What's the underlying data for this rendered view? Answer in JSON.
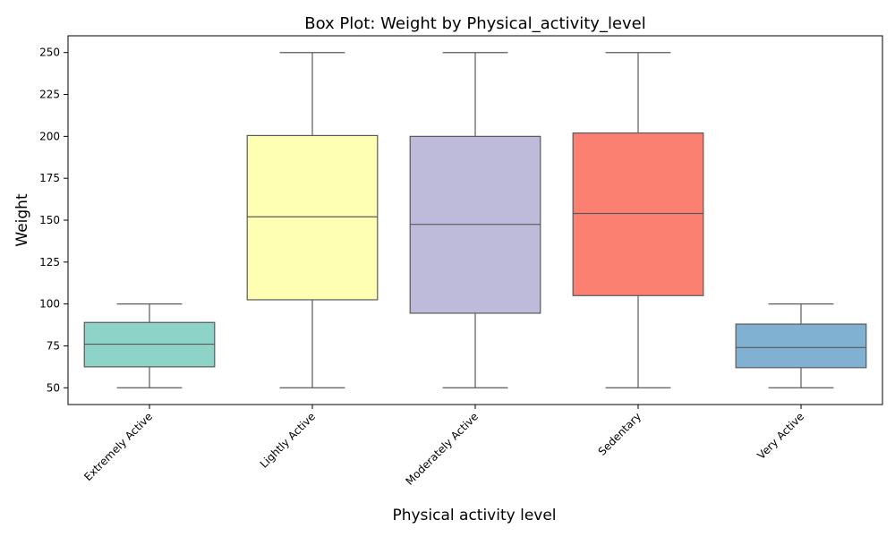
{
  "chart_data": {
    "type": "box",
    "title": "Box Plot: Weight by Physical_activity_level",
    "xlabel": "Physical activity level",
    "ylabel": "Weight",
    "ylim": [
      40,
      260
    ],
    "yticks": [
      50,
      75,
      100,
      125,
      150,
      175,
      200,
      225,
      250
    ],
    "grid": false,
    "categories": [
      "Extremely Active",
      "Lightly Active",
      "Moderately Active",
      "Sedentary",
      "Very Active"
    ],
    "boxes": [
      {
        "category": "Extremely Active",
        "min": 50,
        "q1": 62.5,
        "median": 76,
        "q3": 89,
        "max": 100,
        "color": "#8dd3c7"
      },
      {
        "category": "Lightly Active",
        "min": 50,
        "q1": 102.5,
        "median": 152,
        "q3": 200.5,
        "max": 250,
        "color": "#ffffb3"
      },
      {
        "category": "Moderately Active",
        "min": 50,
        "q1": 94.5,
        "median": 147.5,
        "q3": 200,
        "max": 250,
        "color": "#bebada"
      },
      {
        "category": "Sedentary",
        "min": 50,
        "q1": 105,
        "median": 154,
        "q3": 202,
        "max": 250,
        "color": "#fb8072"
      },
      {
        "category": "Very Active",
        "min": 50,
        "q1": 62,
        "median": 74,
        "q3": 88,
        "max": 100,
        "color": "#80b1d3"
      }
    ]
  }
}
